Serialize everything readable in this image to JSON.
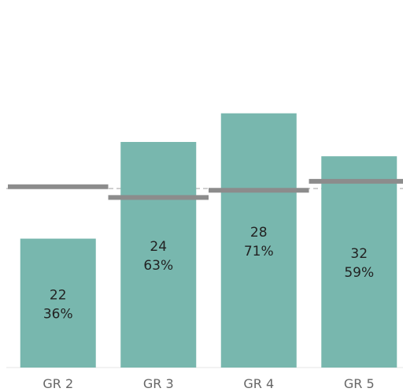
{
  "chart_data": {
    "type": "bar",
    "categories": [
      "GR 2",
      "GR 3",
      "GR 4",
      "GR 5"
    ],
    "series": [
      {
        "values": [
          22,
          24,
          28,
          32
        ],
        "labels": [
          "36%",
          "63%",
          "71%",
          "59%"
        ]
      }
    ],
    "bar_heights_percent": [
      36,
      63,
      71,
      59
    ],
    "reference_markers_percent": [
      50.5,
      47.5,
      49.5,
      52
    ],
    "reference_line_percent": 50,
    "ylim": [
      0,
      100
    ],
    "grid": false,
    "colors": {
      "bar": "#78b7ae",
      "marker": "#8c8c8c",
      "reference_line": "#a0a0a0"
    }
  }
}
